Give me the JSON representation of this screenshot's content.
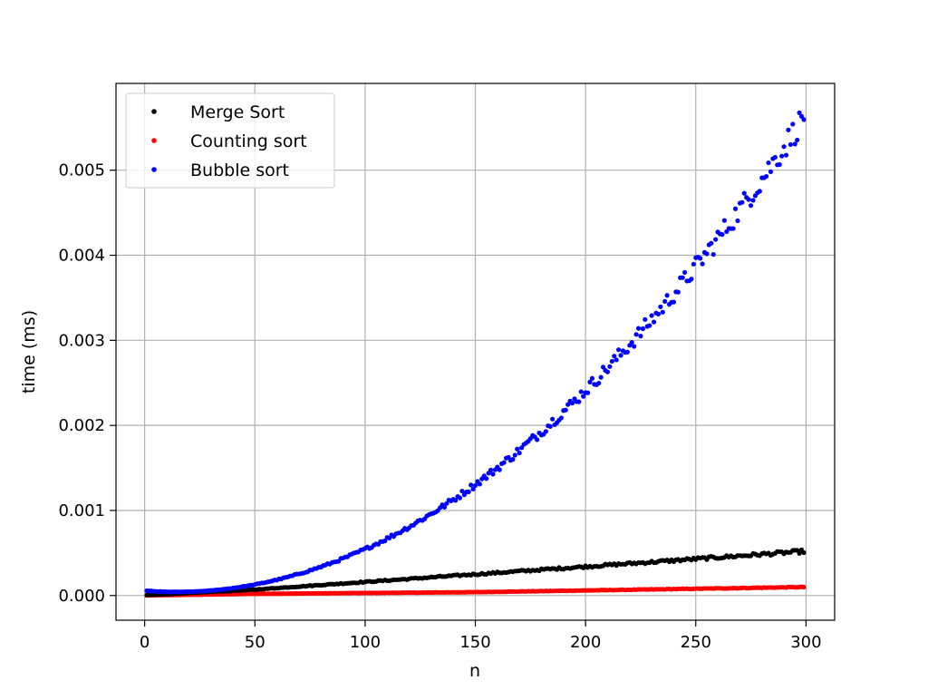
{
  "chart_data": {
    "type": "scatter",
    "title": "",
    "xlabel": "n",
    "ylabel": "time (ms)",
    "xlim": [
      -13,
      313
    ],
    "ylim": [
      -0.00029,
      0.00602
    ],
    "xticks": [
      0,
      50,
      100,
      150,
      200,
      250,
      300
    ],
    "xtick_labels": [
      "0",
      "50",
      "100",
      "150",
      "200",
      "250",
      "300"
    ],
    "yticks": [
      0.0,
      0.001,
      0.002,
      0.003,
      0.004,
      0.005
    ],
    "ytick_labels": [
      "0.000",
      "0.001",
      "0.002",
      "0.003",
      "0.004",
      "0.005"
    ],
    "grid": true,
    "legend": "top-left",
    "x_range": [
      1,
      299
    ],
    "series": [
      {
        "name": "Merge Sort",
        "color": "#000000",
        "model": "linear",
        "values_at_x": {
          "1": 5e-06,
          "50": 7e-05,
          "100": 0.00016,
          "150": 0.00025,
          "200": 0.00034,
          "250": 0.00043,
          "299": 0.00052
        }
      },
      {
        "name": "Counting sort",
        "color": "#ff0000",
        "model": "linear",
        "values_at_x": {
          "1": 2e-06,
          "50": 2e-05,
          "100": 3e-05,
          "150": 4e-05,
          "200": 6e-05,
          "250": 8e-05,
          "299": 0.0001
        }
      },
      {
        "name": "Bubble sort",
        "color": "#0000ff",
        "model": "quadratic",
        "values_at_x": {
          "1": 0.0,
          "50": 0.00017,
          "100": 0.00061,
          "150": 0.00133,
          "200": 0.00239,
          "250": 0.00372,
          "299": 0.00572
        }
      }
    ]
  }
}
